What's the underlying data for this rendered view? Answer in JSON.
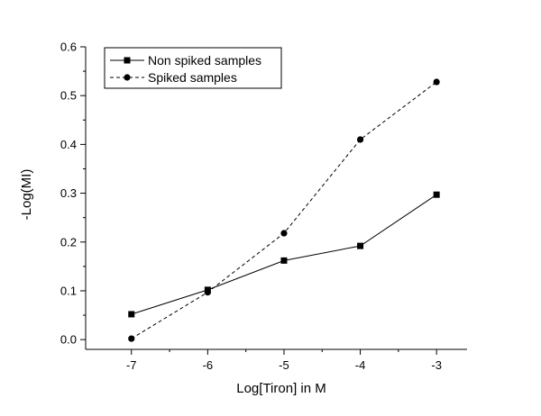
{
  "chart_data": {
    "type": "line",
    "title": "",
    "xlabel": "Log[Tiron] in M",
    "ylabel": "-Log(MI)",
    "xlim": [
      -7.6,
      -2.6
    ],
    "ylim": [
      -0.02,
      0.6
    ],
    "xticks": [
      -7,
      -6,
      -5,
      -4,
      -3
    ],
    "xtick_labels": [
      "-7",
      "-6",
      "-5",
      "-4",
      "-3"
    ],
    "yticks": [
      0.0,
      0.1,
      0.2,
      0.3,
      0.4,
      0.5,
      0.6
    ],
    "ytick_labels": [
      "0.0",
      "0.1",
      "0.2",
      "0.3",
      "0.4",
      "0.5",
      "0.6"
    ],
    "grid": false,
    "legend_position": "top-left",
    "x": [
      -7,
      -6,
      -5,
      -4,
      -3
    ],
    "series": [
      {
        "name": "Non spiked samples",
        "marker": "square",
        "line": "solid",
        "values": [
          0.052,
          0.102,
          0.162,
          0.192,
          0.297
        ]
      },
      {
        "name": "Spiked samples",
        "marker": "circle",
        "line": "dashed",
        "values": [
          0.002,
          0.097,
          0.218,
          0.41,
          0.528
        ]
      }
    ]
  }
}
